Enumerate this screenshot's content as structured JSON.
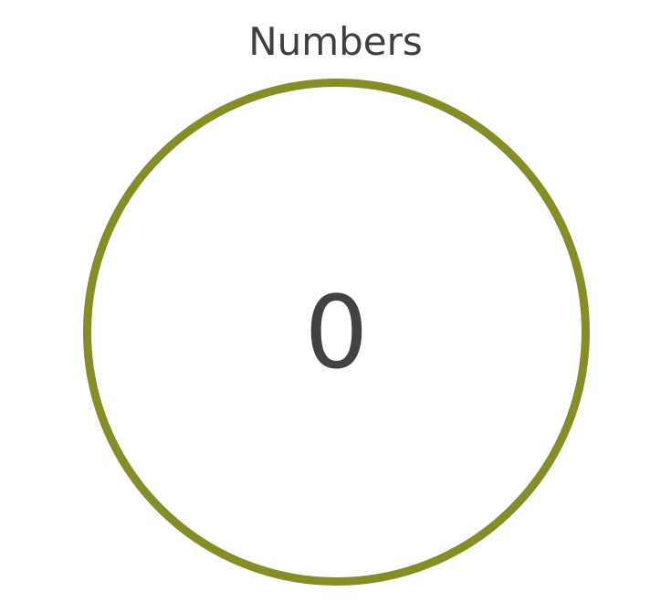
{
  "title": "Numbers",
  "counter": {
    "value": "0"
  },
  "colors": {
    "ring": "#878d26",
    "text": "#424242"
  }
}
